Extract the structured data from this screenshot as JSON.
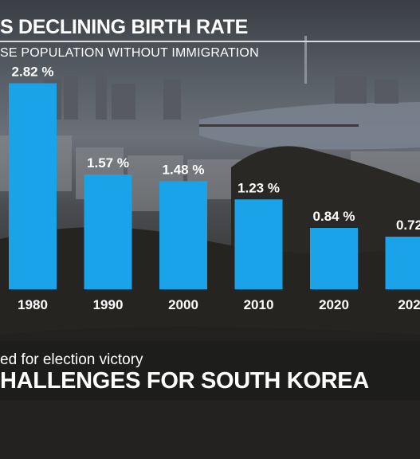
{
  "header": {
    "title": "S DECLINING BIRTH RATE",
    "subtitle": "SE POPULATION WITHOUT IMMIGRATION"
  },
  "chart_data": {
    "type": "bar",
    "categories": [
      "1980",
      "1990",
      "2000",
      "2010",
      "2020",
      "202"
    ],
    "values": [
      2.82,
      1.57,
      1.48,
      1.23,
      0.84,
      0.72
    ],
    "value_labels": [
      "2.82 %",
      "1.57 %",
      "1.48 %",
      "1.23 %",
      "0.84 %",
      "0.72"
    ],
    "ylim": [
      0,
      3
    ],
    "grid": false,
    "bar_color": "#1aa3e8"
  },
  "lower_third": {
    "caption": "ed for election victory",
    "headline": "HALLENGES FOR SOUTH KOREA"
  }
}
